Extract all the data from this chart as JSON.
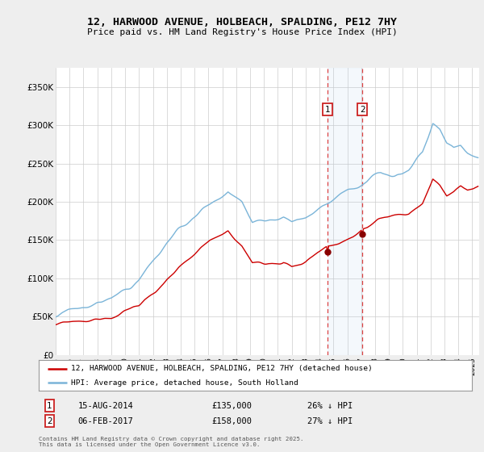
{
  "title": "12, HARWOOD AVENUE, HOLBEACH, SPALDING, PE12 7HY",
  "subtitle": "Price paid vs. HM Land Registry's House Price Index (HPI)",
  "bg_color": "#eeeeee",
  "plot_bg_color": "#ffffff",
  "grid_color": "#cccccc",
  "hpi_color": "#7ab4d8",
  "price_color": "#cc0000",
  "legend_line1": "12, HARWOOD AVENUE, HOLBEACH, SPALDING, PE12 7HY (detached house)",
  "legend_line2": "HPI: Average price, detached house, South Holland",
  "footer": "Contains HM Land Registry data © Crown copyright and database right 2025.\nThis data is licensed under the Open Government Licence v3.0.",
  "ylim": [
    0,
    375000
  ],
  "yticks": [
    0,
    50000,
    100000,
    150000,
    200000,
    250000,
    300000,
    350000
  ],
  "ytick_labels": [
    "£0",
    "£50K",
    "£100K",
    "£150K",
    "£200K",
    "£250K",
    "£300K",
    "£350K"
  ],
  "xstart_year": 1995,
  "xend_year": 2025,
  "marker1_year": 2014,
  "marker1_month": 8,
  "marker1_price": 135000,
  "marker1_label": "1",
  "marker1_text": "15-AUG-2014",
  "marker1_amount": "£135,000",
  "marker1_pct": "26% ↓ HPI",
  "marker2_year": 2017,
  "marker2_month": 2,
  "marker2_price": 158000,
  "marker2_label": "2",
  "marker2_text": "06-FEB-2017",
  "marker2_amount": "£158,000",
  "marker2_pct": "27% ↓ HPI"
}
